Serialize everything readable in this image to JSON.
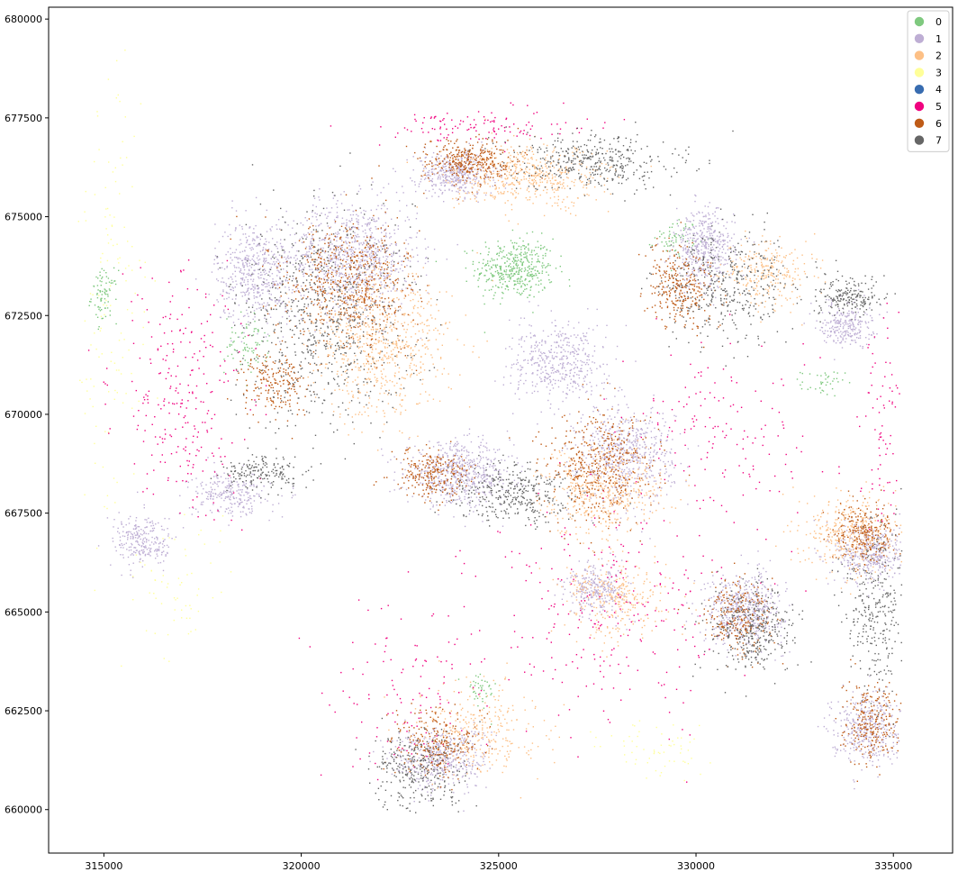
{
  "chart_data": {
    "type": "scatter",
    "title": "",
    "xlabel": "",
    "ylabel": "",
    "xlim": [
      313600,
      336500
    ],
    "ylim": [
      658900,
      680300
    ],
    "grid": false,
    "legend_position": "top-right",
    "x_ticks": [
      315000,
      320000,
      325000,
      330000,
      335000
    ],
    "y_ticks": [
      660000,
      662500,
      665000,
      667500,
      670000,
      672500,
      675000,
      677500,
      680000
    ],
    "x_tick_labels": [
      "315000",
      "320000",
      "325000",
      "330000",
      "335000"
    ],
    "y_tick_labels": [
      "660000",
      "662500",
      "665000",
      "667500",
      "670000",
      "672500",
      "675000",
      "677500",
      "680000"
    ],
    "series": [
      {
        "name": "0",
        "color": "#7fc97f",
        "clusters": [
          [
            325400,
            673700,
            900,
            700,
            420
          ],
          [
            315000,
            673000,
            300,
            600,
            80
          ],
          [
            318600,
            671800,
            500,
            700,
            80
          ],
          [
            329500,
            674500,
            500,
            400,
            60
          ],
          [
            333200,
            670800,
            500,
            300,
            40
          ],
          [
            324500,
            663000,
            400,
            500,
            40
          ]
        ]
      },
      {
        "name": "1",
        "color": "#beaed4",
        "clusters": [
          [
            321300,
            674000,
            1500,
            1300,
            900
          ],
          [
            318800,
            673600,
            900,
            1200,
            500
          ],
          [
            323900,
            676100,
            900,
            500,
            420
          ],
          [
            324000,
            668500,
            1200,
            700,
            600
          ],
          [
            328200,
            669000,
            1100,
            1100,
            600
          ],
          [
            330200,
            674200,
            700,
            900,
            450
          ],
          [
            331200,
            665100,
            900,
            800,
            500
          ],
          [
            334400,
            666500,
            800,
            700,
            400
          ],
          [
            334300,
            662100,
            800,
            800,
            400
          ],
          [
            323500,
            661300,
            1100,
            700,
            450
          ],
          [
            316000,
            666800,
            700,
            600,
            250
          ],
          [
            318200,
            668000,
            900,
            500,
            250
          ],
          [
            326500,
            671300,
            1100,
            900,
            450
          ],
          [
            333800,
            672300,
            600,
            500,
            250
          ],
          [
            327500,
            665600,
            700,
            600,
            300
          ]
        ]
      },
      {
        "name": "2",
        "color": "#fdc086",
        "clusters": [
          [
            322000,
            671800,
            1600,
            1700,
            700
          ],
          [
            325800,
            676000,
            1800,
            700,
            500
          ],
          [
            327600,
            668100,
            1400,
            1000,
            450
          ],
          [
            333900,
            667000,
            1100,
            900,
            350
          ],
          [
            328000,
            665400,
            1200,
            900,
            300
          ],
          [
            324500,
            662000,
            1400,
            1100,
            300
          ],
          [
            331800,
            673600,
            1000,
            800,
            250
          ]
        ]
      },
      {
        "name": "3",
        "color": "#ffff99",
        "clusters": [
          [
            315200,
            673000,
            900,
            5000,
            140
          ],
          [
            316800,
            665500,
            900,
            1500,
            60
          ],
          [
            329000,
            661500,
            1400,
            800,
            60
          ]
        ]
      },
      {
        "name": "4",
        "color": "#386cb0",
        "clusters": []
      },
      {
        "name": "5",
        "color": "#f0027f",
        "clusters": [
          [
            317000,
            670500,
            1500,
            2800,
            260
          ],
          [
            327800,
            665000,
            3000,
            2500,
            260
          ],
          [
            330500,
            669500,
            2200,
            2000,
            150
          ],
          [
            324500,
            677300,
            2400,
            400,
            120
          ],
          [
            334700,
            670000,
            500,
            2500,
            80
          ],
          [
            322800,
            663000,
            2000,
            2000,
            120
          ]
        ]
      },
      {
        "name": "6",
        "color": "#bf5b17",
        "clusters": [
          [
            321200,
            673300,
            1500,
            1500,
            600
          ],
          [
            324200,
            676400,
            1100,
            500,
            350
          ],
          [
            327600,
            668700,
            1200,
            1300,
            450
          ],
          [
            323300,
            668500,
            900,
            600,
            250
          ],
          [
            329600,
            673200,
            800,
            900,
            300
          ],
          [
            334300,
            667000,
            700,
            700,
            250
          ],
          [
            331100,
            664900,
            800,
            800,
            250
          ],
          [
            334400,
            662200,
            700,
            900,
            250
          ],
          [
            323400,
            661700,
            900,
            800,
            250
          ],
          [
            319300,
            670800,
            800,
            700,
            200
          ]
        ]
      },
      {
        "name": "7",
        "color": "#666666",
        "clusters": [
          [
            320600,
            672500,
            2000,
            2500,
            700
          ],
          [
            327400,
            676400,
            1900,
            600,
            400
          ],
          [
            330700,
            673300,
            1500,
            1300,
            400
          ],
          [
            325300,
            668000,
            1300,
            700,
            350
          ],
          [
            331400,
            664600,
            1000,
            1000,
            350
          ],
          [
            334500,
            665000,
            700,
            2000,
            300
          ],
          [
            333800,
            673000,
            800,
            500,
            200
          ],
          [
            323000,
            661000,
            1100,
            900,
            300
          ],
          [
            319000,
            668500,
            1000,
            400,
            180
          ]
        ]
      }
    ]
  }
}
